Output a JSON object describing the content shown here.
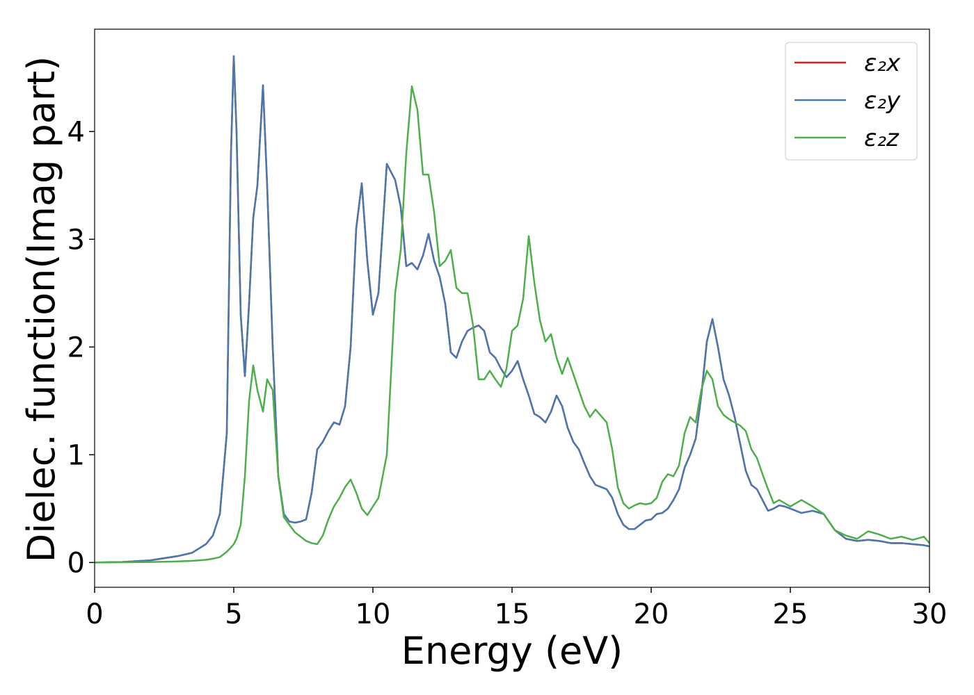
{
  "chart_data": {
    "type": "line",
    "xlabel": "Energy (eV)",
    "ylabel": "Dielec. function(Imag part)",
    "x": [
      0,
      1,
      2,
      3,
      3.5,
      4,
      4.25,
      4.5,
      4.75,
      4.9,
      5.0,
      5.1,
      5.25,
      5.4,
      5.55,
      5.7,
      5.85,
      6.05,
      6.2,
      6.4,
      6.6,
      6.8,
      7.0,
      7.2,
      7.4,
      7.6,
      7.8,
      8.0,
      8.2,
      8.4,
      8.6,
      8.8,
      9.0,
      9.2,
      9.4,
      9.6,
      9.8,
      10.0,
      10.2,
      10.5,
      10.8,
      11.0,
      11.2,
      11.4,
      11.6,
      11.8,
      12.0,
      12.2,
      12.4,
      12.6,
      12.8,
      13.0,
      13.2,
      13.4,
      13.6,
      13.8,
      14.0,
      14.2,
      14.4,
      14.6,
      14.8,
      15.0,
      15.2,
      15.4,
      15.6,
      15.8,
      16.0,
      16.2,
      16.4,
      16.6,
      16.8,
      17.0,
      17.2,
      17.4,
      17.6,
      17.8,
      18.0,
      18.2,
      18.4,
      18.6,
      18.8,
      19.0,
      19.2,
      19.4,
      19.6,
      19.8,
      20.0,
      20.2,
      20.4,
      20.6,
      20.8,
      21.0,
      21.2,
      21.4,
      21.6,
      21.8,
      22.0,
      22.2,
      22.4,
      22.6,
      22.8,
      23.0,
      23.2,
      23.4,
      23.6,
      23.8,
      24.0,
      24.2,
      24.4,
      24.6,
      24.8,
      25.0,
      25.4,
      25.8,
      26.2,
      26.6,
      27.0,
      27.4,
      27.8,
      28.2,
      28.6,
      29.0,
      29.4,
      29.8,
      30.0
    ],
    "series": [
      {
        "name": "ε₂x",
        "color": "#e41a1c",
        "values": [
          0,
          0.005,
          0.02,
          0.06,
          0.09,
          0.17,
          0.25,
          0.45,
          1.2,
          3.8,
          4.7,
          4.0,
          2.3,
          1.73,
          2.4,
          3.2,
          3.5,
          4.43,
          3.5,
          2.0,
          0.8,
          0.45,
          0.38,
          0.37,
          0.38,
          0.4,
          0.65,
          1.05,
          1.12,
          1.22,
          1.3,
          1.28,
          1.45,
          2.0,
          3.1,
          3.52,
          2.8,
          2.3,
          2.5,
          3.7,
          3.55,
          3.3,
          2.75,
          2.78,
          2.72,
          2.85,
          3.05,
          2.8,
          2.65,
          2.4,
          1.95,
          1.9,
          2.05,
          2.15,
          2.18,
          2.2,
          2.15,
          1.95,
          1.9,
          1.8,
          1.72,
          1.78,
          1.87,
          1.7,
          1.55,
          1.38,
          1.35,
          1.3,
          1.4,
          1.55,
          1.45,
          1.25,
          1.12,
          1.05,
          0.92,
          0.8,
          0.72,
          0.7,
          0.68,
          0.6,
          0.45,
          0.35,
          0.31,
          0.31,
          0.35,
          0.39,
          0.4,
          0.45,
          0.46,
          0.5,
          0.58,
          0.68,
          0.88,
          1.0,
          1.15,
          1.55,
          2.05,
          2.26,
          2.0,
          1.7,
          1.55,
          1.35,
          1.1,
          0.85,
          0.72,
          0.68,
          0.58,
          0.48,
          0.5,
          0.53,
          0.52,
          0.5,
          0.46,
          0.48,
          0.45,
          0.3,
          0.22,
          0.2,
          0.21,
          0.2,
          0.18,
          0.18,
          0.17,
          0.16,
          0.15
        ]
      },
      {
        "name": "ε₂y",
        "color": "#4878b0",
        "values": [
          0,
          0.005,
          0.02,
          0.06,
          0.09,
          0.17,
          0.25,
          0.45,
          1.2,
          3.8,
          4.7,
          4.0,
          2.3,
          1.73,
          2.4,
          3.2,
          3.5,
          4.43,
          3.5,
          2.0,
          0.8,
          0.45,
          0.38,
          0.37,
          0.38,
          0.4,
          0.65,
          1.05,
          1.12,
          1.22,
          1.3,
          1.28,
          1.45,
          2.0,
          3.1,
          3.52,
          2.8,
          2.3,
          2.5,
          3.7,
          3.55,
          3.3,
          2.75,
          2.78,
          2.72,
          2.85,
          3.05,
          2.8,
          2.65,
          2.4,
          1.95,
          1.9,
          2.05,
          2.15,
          2.18,
          2.2,
          2.15,
          1.95,
          1.9,
          1.8,
          1.72,
          1.78,
          1.87,
          1.7,
          1.55,
          1.38,
          1.35,
          1.3,
          1.4,
          1.55,
          1.45,
          1.25,
          1.12,
          1.05,
          0.92,
          0.8,
          0.72,
          0.7,
          0.68,
          0.6,
          0.45,
          0.35,
          0.31,
          0.31,
          0.35,
          0.39,
          0.4,
          0.45,
          0.46,
          0.5,
          0.58,
          0.68,
          0.88,
          1.0,
          1.15,
          1.55,
          2.05,
          2.26,
          2.0,
          1.7,
          1.55,
          1.35,
          1.1,
          0.85,
          0.72,
          0.68,
          0.58,
          0.48,
          0.5,
          0.53,
          0.52,
          0.5,
          0.46,
          0.48,
          0.45,
          0.3,
          0.22,
          0.2,
          0.21,
          0.2,
          0.18,
          0.18,
          0.17,
          0.16,
          0.15
        ]
      },
      {
        "name": "ε₂z",
        "color": "#4daf4a",
        "values": [
          0,
          0.002,
          0.005,
          0.01,
          0.015,
          0.025,
          0.035,
          0.05,
          0.1,
          0.14,
          0.17,
          0.22,
          0.35,
          0.8,
          1.5,
          1.83,
          1.6,
          1.4,
          1.7,
          1.6,
          0.8,
          0.42,
          0.35,
          0.28,
          0.24,
          0.2,
          0.18,
          0.17,
          0.25,
          0.4,
          0.52,
          0.6,
          0.7,
          0.77,
          0.65,
          0.5,
          0.44,
          0.52,
          0.6,
          1.0,
          2.5,
          2.9,
          3.8,
          4.42,
          4.2,
          3.6,
          3.6,
          3.25,
          2.75,
          2.8,
          2.9,
          2.55,
          2.5,
          2.5,
          2.2,
          1.7,
          1.7,
          1.78,
          1.7,
          1.63,
          1.8,
          2.15,
          2.2,
          2.45,
          3.03,
          2.6,
          2.25,
          2.05,
          2.12,
          1.9,
          1.75,
          1.9,
          1.75,
          1.6,
          1.45,
          1.35,
          1.42,
          1.36,
          1.3,
          1.05,
          0.7,
          0.55,
          0.5,
          0.53,
          0.55,
          0.54,
          0.55,
          0.6,
          0.75,
          0.82,
          0.8,
          0.9,
          1.2,
          1.35,
          1.3,
          1.6,
          1.78,
          1.7,
          1.45,
          1.37,
          1.33,
          1.3,
          1.27,
          1.22,
          1.05,
          0.97,
          0.82,
          0.68,
          0.55,
          0.58,
          0.55,
          0.52,
          0.58,
          0.52,
          0.45,
          0.3,
          0.25,
          0.22,
          0.29,
          0.26,
          0.22,
          0.24,
          0.21,
          0.24,
          0.18
        ]
      }
    ],
    "xlim": [
      0,
      30
    ],
    "xticks": [
      0,
      5,
      10,
      15,
      20,
      25,
      30
    ],
    "ylim": [
      -0.23,
      4.95
    ],
    "yticks": [
      0,
      1,
      2,
      3,
      4
    ],
    "grid": false,
    "legend": "upper right"
  }
}
